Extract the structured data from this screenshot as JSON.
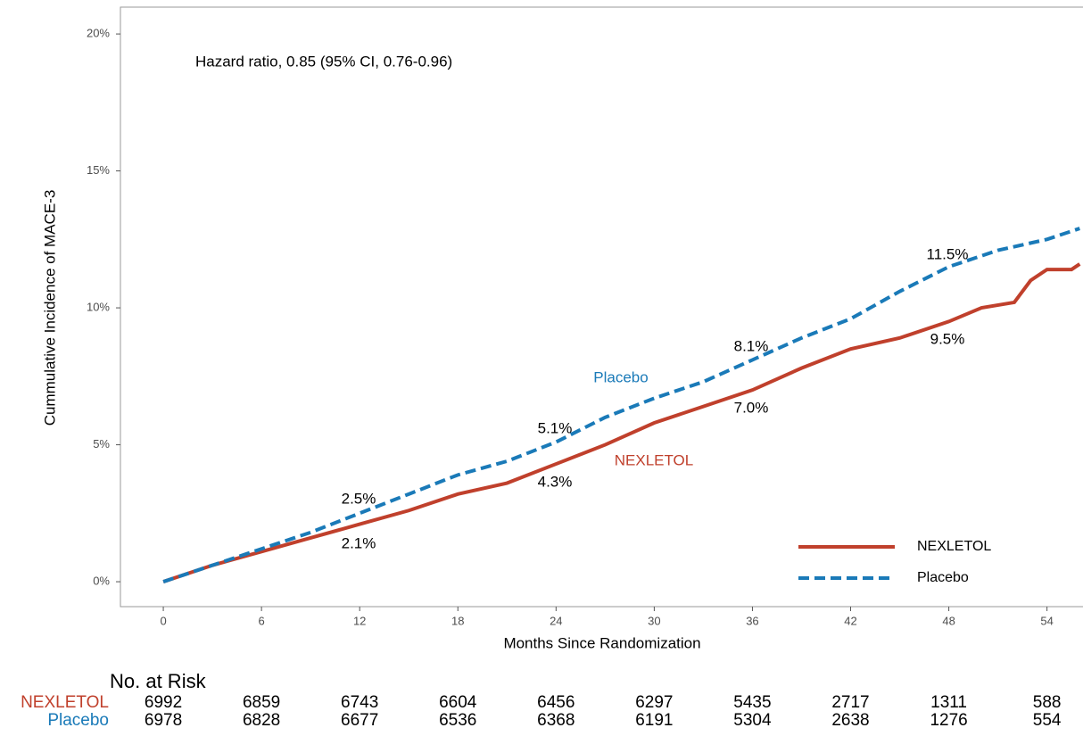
{
  "chart_data": {
    "type": "line",
    "annotation_main": "Hazard ratio, 0.85 (95% CI, 0.76-0.96)",
    "xlabel": "Months Since Randomization",
    "ylabel": "Cummulative Incidence of  MACE-3",
    "xlim": [
      -2.62,
      56.2
    ],
    "xticks": [
      0,
      6,
      12,
      18,
      24,
      30,
      36,
      42,
      48,
      54
    ],
    "ylim": [
      -0.91,
      20.98
    ],
    "yticks": [
      {
        "value": 0,
        "label": "0%"
      },
      {
        "value": 5,
        "label": "5%"
      },
      {
        "value": 10,
        "label": "10%"
      },
      {
        "value": 15,
        "label": "15%"
      },
      {
        "value": 20,
        "label": "20%"
      }
    ],
    "series": [
      {
        "name": "NEXLETOL",
        "color": "#c0402c",
        "dash": false,
        "x": [
          0,
          3,
          6,
          9,
          12,
          15,
          18,
          21,
          24,
          27,
          30,
          33,
          36,
          39,
          42,
          45,
          48,
          50,
          52,
          53,
          54,
          55.5,
          56
        ],
        "values": [
          0,
          0.6,
          1.1,
          1.6,
          2.1,
          2.6,
          3.2,
          3.6,
          4.3,
          5.0,
          5.8,
          6.4,
          7.0,
          7.8,
          8.5,
          8.9,
          9.5,
          10.0,
          10.2,
          11.0,
          11.4,
          11.4,
          11.6
        ]
      },
      {
        "name": "Placebo",
        "color": "#1a7ab8",
        "dash": true,
        "x": [
          0,
          3,
          6,
          9,
          12,
          15,
          18,
          21,
          24,
          27,
          30,
          33,
          36,
          39,
          42,
          45,
          48,
          51,
          54,
          56
        ],
        "values": [
          0,
          0.6,
          1.2,
          1.8,
          2.5,
          3.2,
          3.9,
          4.4,
          5.1,
          6.0,
          6.7,
          7.3,
          8.1,
          8.9,
          9.6,
          10.6,
          11.5,
          12.1,
          12.5,
          12.9
        ]
      }
    ],
    "annotations": [
      "2.5%",
      "2.1%",
      "5.1%",
      "4.3%",
      "8.1%",
      "7.0%",
      "11.5%",
      "9.5%",
      "Placebo",
      "NEXLETOL"
    ],
    "legend": "bottom-right",
    "risk_table": {
      "title": "No. at Risk",
      "rows": [
        {
          "name": "NEXLETOL",
          "color": "#c0402c",
          "values": [
            "6992",
            "6859",
            "6743",
            "6604",
            "6456",
            "6297",
            "5435",
            "2717",
            "1311",
            "588"
          ]
        },
        {
          "name": "Placebo",
          "color": "#1a7ab8",
          "values": [
            "6978",
            "6828",
            "6677",
            "6536",
            "6368",
            "6191",
            "5304",
            "2638",
            "1276",
            "554"
          ]
        }
      ]
    }
  }
}
